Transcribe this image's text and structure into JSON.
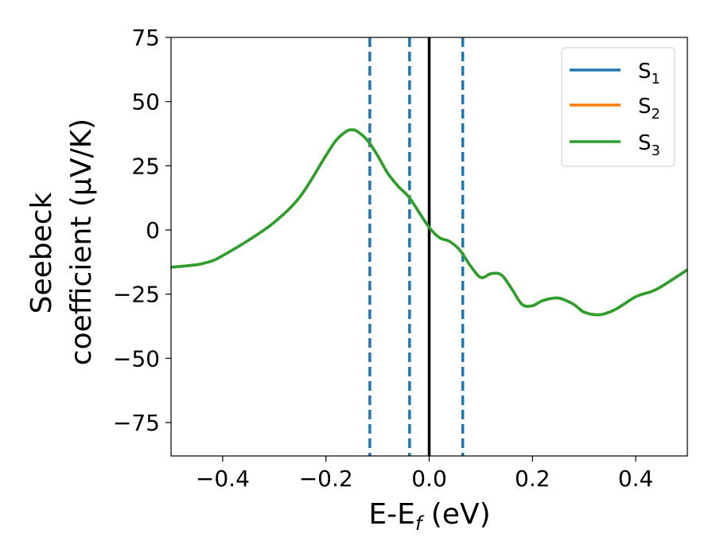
{
  "chart_data": {
    "type": "line",
    "xlabel": {
      "base": "E-E",
      "sub": "f",
      "unit": " (eV)"
    },
    "ylabel_line1": "Seebeck",
    "ylabel_line2": "coefficient  (μV/K)",
    "xlim": [
      -0.5,
      0.5
    ],
    "ylim": [
      -88,
      75
    ],
    "xticks": [
      -0.4,
      -0.2,
      0.0,
      0.2,
      0.4
    ],
    "xtick_labels": [
      "−0.4",
      "−0.2",
      "0.0",
      "0.2",
      "0.4"
    ],
    "yticks": [
      -75,
      -50,
      -25,
      0,
      25,
      50,
      75
    ],
    "ytick_labels": [
      "−75",
      "−50",
      "−25",
      "0",
      "25",
      "50",
      "75"
    ],
    "grid": false,
    "legend_position": "top-right",
    "x": [
      -0.5,
      -0.45,
      -0.42,
      -0.4,
      -0.35,
      -0.3,
      -0.25,
      -0.2,
      -0.18,
      -0.16,
      -0.15,
      -0.14,
      -0.12,
      -0.1,
      -0.08,
      -0.06,
      -0.04,
      -0.02,
      0.0,
      0.02,
      0.04,
      0.06,
      0.08,
      0.1,
      0.12,
      0.14,
      0.16,
      0.18,
      0.2,
      0.22,
      0.25,
      0.28,
      0.3,
      0.33,
      0.36,
      0.4,
      0.43,
      0.45,
      0.5
    ],
    "series": [
      {
        "name_base": "S",
        "name_sub": "1",
        "color": "#1f77b4",
        "values": [
          -14.5,
          -13.5,
          -12,
          -10,
          -4,
          3,
          13,
          29,
          35,
          38.5,
          39,
          38.5,
          35,
          29,
          22,
          17,
          13,
          7,
          1,
          -3,
          -4.5,
          -8,
          -14,
          -18.5,
          -17,
          -17.5,
          -23,
          -29,
          -29.5,
          -27.5,
          -26.5,
          -29,
          -32,
          -33,
          -31,
          -26,
          -24,
          -22,
          -15.5
        ]
      },
      {
        "name_base": "S",
        "name_sub": "2",
        "color": "#ff7f0e",
        "values": [
          -14.5,
          -13.5,
          -12,
          -10,
          -4,
          3,
          13,
          29,
          35,
          38.5,
          39,
          38.5,
          35,
          29,
          22,
          17,
          13,
          7,
          1,
          -3,
          -4.5,
          -8,
          -14,
          -18.5,
          -17,
          -17.5,
          -23,
          -29,
          -29.5,
          -27.5,
          -26.5,
          -29,
          -32,
          -33,
          -31,
          -26,
          -24,
          -22,
          -15.5
        ]
      },
      {
        "name_base": "S",
        "name_sub": "3",
        "color": "#2ca02c",
        "values": [
          -14.5,
          -13.5,
          -12,
          -10,
          -4,
          3,
          13,
          29,
          35,
          38.5,
          39,
          38.5,
          35,
          29,
          22,
          17,
          13,
          7,
          1,
          -3,
          -4.5,
          -8,
          -14,
          -18.5,
          -17,
          -17.5,
          -23,
          -29,
          -29.5,
          -27.5,
          -26.5,
          -29,
          -32,
          -33,
          -31,
          -26,
          -24,
          -22,
          -15.5
        ]
      }
    ],
    "vlines_dashed": {
      "color": "#1f77b4",
      "x": [
        -0.115,
        -0.038,
        0.065
      ]
    },
    "vline_solid": {
      "color": "#000000",
      "x": 0.0
    }
  }
}
